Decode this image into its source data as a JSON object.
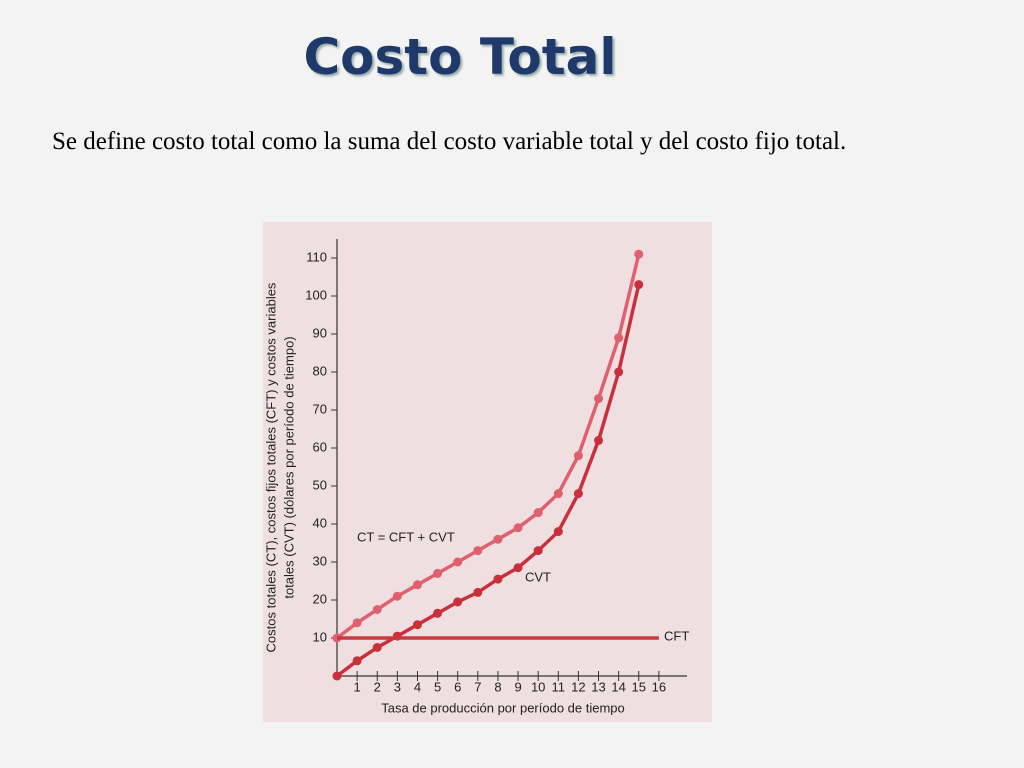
{
  "title": "Costo Total",
  "body": "Se define costo total como la suma del costo variable total y del costo fijo total.",
  "chart_data": {
    "type": "line",
    "x": [
      0,
      1,
      2,
      3,
      4,
      5,
      6,
      7,
      8,
      9,
      10,
      11,
      12,
      13,
      14,
      15,
      16
    ],
    "series": [
      {
        "name": "CT = CFT + CVT",
        "color": "#e0606e",
        "values": [
          10,
          14,
          17.5,
          21,
          24,
          27,
          30,
          33,
          36,
          39,
          43,
          48,
          58,
          73,
          89,
          111,
          null
        ]
      },
      {
        "name": "CVT",
        "color": "#c9303c",
        "values": [
          0,
          4,
          7.5,
          10.5,
          13.5,
          16.5,
          19.5,
          22,
          25.5,
          28.5,
          33,
          38,
          48,
          62,
          80,
          103,
          null
        ]
      },
      {
        "name": "CFT",
        "color": "#c83a3e",
        "values": [
          10,
          10,
          10,
          10,
          10,
          10,
          10,
          10,
          10,
          10,
          10,
          10,
          10,
          10,
          10,
          10,
          10
        ]
      }
    ],
    "xlabel": "Tasa de producción por período de tiempo",
    "ylabel": [
      "Costos totales (CT), costos fijos totales (CFT) y costos variables",
      "totales (CVT) (dólares por período de tiempo)"
    ],
    "xlim": [
      0,
      17
    ],
    "ylim": [
      0,
      115
    ],
    "xticks": [
      1,
      2,
      3,
      4,
      5,
      6,
      7,
      8,
      9,
      10,
      11,
      12,
      13,
      14,
      15,
      16
    ],
    "yticks": [
      10,
      20,
      30,
      40,
      50,
      60,
      70,
      80,
      90,
      100,
      110
    ]
  }
}
